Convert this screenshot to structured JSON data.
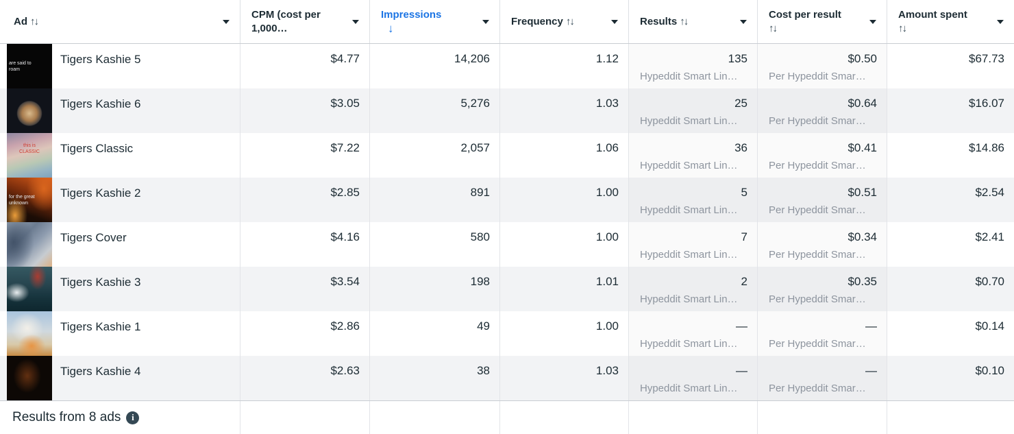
{
  "columns": [
    {
      "id": "ad",
      "label": "Ad",
      "sort_arrows": "↑↓"
    },
    {
      "id": "cpm",
      "label_line1": "CPM (cost per",
      "label_line2": "1,000…"
    },
    {
      "id": "impressions",
      "label": "Impressions",
      "sort_direction": "↓",
      "active": true
    },
    {
      "id": "frequency",
      "label": "Frequency",
      "sort_arrows": "↑↓"
    },
    {
      "id": "results",
      "label": "Results",
      "sort_arrows": "↑↓"
    },
    {
      "id": "cost_per_result",
      "label": "Cost per result",
      "sort_arrows": "↑↓"
    },
    {
      "id": "amount_spent",
      "label": "Amount spent",
      "sort_arrows": "↑↓"
    }
  ],
  "rows": [
    {
      "name": "Tigers Kashie 5",
      "cpm": "$4.77",
      "impressions": "14,206",
      "frequency": "1.12",
      "results": "135",
      "results_sub": "Hypeddit Smart Lin…",
      "cost_per_result": "$0.50",
      "cost_per_result_sub": "Per Hypeddit Smar…",
      "amount_spent": "$67.73",
      "thumb_line1": "are  said  to",
      "thumb_line2": "roam"
    },
    {
      "name": "Tigers Kashie 6",
      "cpm": "$3.05",
      "impressions": "5,276",
      "frequency": "1.03",
      "results": "25",
      "results_sub": "Hypeddit Smart Lin…",
      "cost_per_result": "$0.64",
      "cost_per_result_sub": "Per Hypeddit Smar…",
      "amount_spent": "$16.07",
      "thumb_line1": "",
      "thumb_line2": ""
    },
    {
      "name": "Tigers Classic",
      "cpm": "$7.22",
      "impressions": "2,057",
      "frequency": "1.06",
      "results": "36",
      "results_sub": "Hypeddit Smart Lin…",
      "cost_per_result": "$0.41",
      "cost_per_result_sub": "Per Hypeddit Smar…",
      "amount_spent": "$14.86",
      "thumb_line1": "this is",
      "thumb_line2": "CLASSIC"
    },
    {
      "name": "Tigers Kashie 2",
      "cpm": "$2.85",
      "impressions": "891",
      "frequency": "1.00",
      "results": "5",
      "results_sub": "Hypeddit Smart Lin…",
      "cost_per_result": "$0.51",
      "cost_per_result_sub": "Per Hypeddit Smar…",
      "amount_spent": "$2.54",
      "thumb_line1": "for  the  great",
      "thumb_line2": "unknown"
    },
    {
      "name": "Tigers Cover",
      "cpm": "$4.16",
      "impressions": "580",
      "frequency": "1.00",
      "results": "7",
      "results_sub": "Hypeddit Smart Lin…",
      "cost_per_result": "$0.34",
      "cost_per_result_sub": "Per Hypeddit Smar…",
      "amount_spent": "$2.41",
      "thumb_line1": "",
      "thumb_line2": ""
    },
    {
      "name": "Tigers Kashie 3",
      "cpm": "$3.54",
      "impressions": "198",
      "frequency": "1.01",
      "results": "2",
      "results_sub": "Hypeddit Smart Lin…",
      "cost_per_result": "$0.35",
      "cost_per_result_sub": "Per Hypeddit Smar…",
      "amount_spent": "$0.70",
      "thumb_line1": "",
      "thumb_line2": ""
    },
    {
      "name": "Tigers Kashie 1",
      "cpm": "$2.86",
      "impressions": "49",
      "frequency": "1.00",
      "results": "—",
      "results_sub": "Hypeddit Smart Lin…",
      "cost_per_result": "—",
      "cost_per_result_sub": "Per Hypeddit Smar…",
      "amount_spent": "$0.14",
      "thumb_line1": "",
      "thumb_line2": ""
    },
    {
      "name": "Tigers Kashie 4",
      "cpm": "$2.63",
      "impressions": "38",
      "frequency": "1.03",
      "results": "—",
      "results_sub": "Hypeddit Smart Lin…",
      "cost_per_result": "—",
      "cost_per_result_sub": "Per Hypeddit Smar…",
      "amount_spent": "$0.10",
      "thumb_line1": "",
      "thumb_line2": ""
    }
  ],
  "footer": {
    "summary": "Results from 8 ads",
    "info_icon": "i"
  },
  "colors": {
    "accent_blue": "#1b74e4",
    "text_dark": "#1c2b33",
    "text_gray": "#8d949e",
    "row_stripe": "#f2f3f5",
    "border": "#c9cdd2"
  }
}
